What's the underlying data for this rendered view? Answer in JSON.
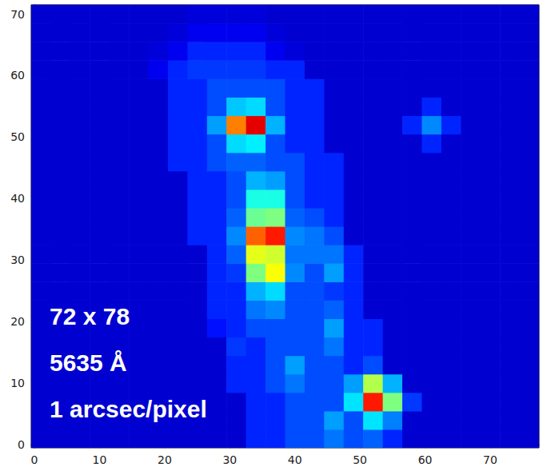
{
  "chart_data": {
    "type": "heatmap",
    "annotations": [
      "72 x 78",
      "5635 Å",
      "1 arcsec/pixel"
    ],
    "x": [
      1,
      4,
      7,
      10,
      13,
      16,
      19,
      22,
      25,
      28,
      31,
      34,
      37,
      40,
      43,
      46,
      49,
      52,
      55,
      58,
      61,
      64,
      67,
      70,
      73,
      76
    ],
    "y": [
      1,
      4,
      7,
      10,
      13,
      16,
      19,
      22,
      25,
      28,
      31,
      34,
      37,
      40,
      43,
      46,
      49,
      52,
      55,
      58,
      61,
      64,
      67,
      70
    ],
    "cells": [
      [
        8,
        8,
        8,
        8,
        8,
        8,
        8,
        8,
        8,
        8,
        8,
        16,
        16,
        20,
        20,
        24,
        20,
        22,
        16,
        8,
        8,
        8,
        8,
        8,
        8,
        8
      ],
      [
        8,
        8,
        8,
        8,
        8,
        8,
        8,
        8,
        8,
        8,
        8,
        16,
        16,
        20,
        20,
        28,
        20,
        35,
        25,
        8,
        8,
        8,
        8,
        8,
        8,
        8
      ],
      [
        8,
        8,
        8,
        8,
        8,
        8,
        8,
        8,
        8,
        8,
        8,
        16,
        16,
        20,
        20,
        20,
        35,
        85,
        50,
        18,
        8,
        8,
        8,
        8,
        8,
        8
      ],
      [
        8,
        8,
        8,
        8,
        8,
        8,
        8,
        8,
        8,
        8,
        16,
        16,
        20,
        24,
        20,
        20,
        28,
        55,
        30,
        8,
        8,
        8,
        8,
        8,
        8,
        8
      ],
      [
        8,
        8,
        8,
        8,
        8,
        8,
        8,
        8,
        8,
        8,
        16,
        16,
        20,
        28,
        20,
        20,
        16,
        20,
        8,
        8,
        8,
        8,
        8,
        8,
        8,
        8
      ],
      [
        8,
        8,
        8,
        8,
        8,
        8,
        8,
        8,
        8,
        8,
        18,
        16,
        20,
        20,
        20,
        24,
        16,
        16,
        8,
        8,
        8,
        8,
        8,
        8,
        8,
        8
      ],
      [
        8,
        8,
        8,
        8,
        8,
        8,
        8,
        8,
        8,
        14,
        16,
        20,
        20,
        20,
        20,
        28,
        16,
        16,
        8,
        8,
        8,
        8,
        8,
        8,
        8,
        8
      ],
      [
        8,
        8,
        8,
        8,
        8,
        8,
        8,
        8,
        8,
        16,
        16,
        24,
        26,
        20,
        20,
        22,
        16,
        8,
        8,
        8,
        8,
        8,
        8,
        8,
        8,
        8
      ],
      [
        8,
        8,
        8,
        8,
        8,
        8,
        8,
        8,
        8,
        16,
        16,
        30,
        34,
        20,
        20,
        18,
        16,
        8,
        8,
        8,
        8,
        8,
        8,
        8,
        8,
        8
      ],
      [
        8,
        8,
        8,
        8,
        8,
        8,
        8,
        8,
        8,
        16,
        18,
        50,
        62,
        26,
        20,
        28,
        16,
        8,
        8,
        8,
        8,
        8,
        8,
        8,
        8,
        8
      ],
      [
        8,
        8,
        8,
        8,
        8,
        8,
        8,
        8,
        8,
        16,
        22,
        60,
        58,
        24,
        24,
        24,
        16,
        8,
        8,
        8,
        8,
        8,
        8,
        8,
        8,
        8
      ],
      [
        8,
        8,
        8,
        8,
        8,
        8,
        8,
        8,
        16,
        16,
        26,
        78,
        85,
        26,
        24,
        20,
        8,
        8,
        8,
        8,
        8,
        8,
        8,
        8,
        8,
        8
      ],
      [
        8,
        8,
        8,
        8,
        8,
        8,
        8,
        8,
        16,
        16,
        22,
        48,
        50,
        22,
        20,
        16,
        8,
        8,
        8,
        8,
        8,
        8,
        8,
        8,
        8,
        8
      ],
      [
        8,
        8,
        8,
        8,
        8,
        8,
        8,
        8,
        16,
        16,
        20,
        40,
        40,
        20,
        16,
        16,
        8,
        8,
        8,
        8,
        8,
        8,
        8,
        8,
        8,
        8
      ],
      [
        8,
        8,
        8,
        8,
        8,
        8,
        8,
        8,
        16,
        16,
        20,
        30,
        28,
        20,
        16,
        16,
        8,
        8,
        8,
        8,
        8,
        8,
        8,
        8,
        8,
        8
      ],
      [
        8,
        8,
        8,
        8,
        8,
        8,
        8,
        16,
        16,
        20,
        22,
        22,
        20,
        20,
        16,
        16,
        8,
        8,
        8,
        8,
        8,
        8,
        8,
        8,
        8,
        8
      ],
      [
        8,
        8,
        8,
        8,
        8,
        8,
        8,
        16,
        16,
        20,
        34,
        36,
        20,
        16,
        16,
        8,
        8,
        8,
        8,
        8,
        16,
        8,
        8,
        8,
        8,
        8
      ],
      [
        8,
        8,
        8,
        8,
        8,
        8,
        8,
        16,
        16,
        28,
        75,
        90,
        30,
        16,
        16,
        8,
        8,
        8,
        8,
        16,
        26,
        16,
        8,
        8,
        8,
        8
      ],
      [
        8,
        8,
        8,
        8,
        8,
        8,
        8,
        16,
        16,
        20,
        32,
        34,
        20,
        16,
        16,
        8,
        8,
        8,
        8,
        8,
        16,
        8,
        8,
        8,
        8,
        8
      ],
      [
        8,
        8,
        8,
        8,
        8,
        8,
        8,
        16,
        16,
        20,
        20,
        20,
        20,
        16,
        16,
        8,
        8,
        8,
        8,
        8,
        8,
        8,
        8,
        8,
        8,
        8
      ],
      [
        8,
        8,
        8,
        8,
        8,
        8,
        11,
        16,
        18,
        18,
        18,
        18,
        16,
        16,
        8,
        8,
        8,
        8,
        8,
        8,
        8,
        8,
        8,
        8,
        8,
        8
      ],
      [
        8,
        8,
        8,
        8,
        8,
        8,
        9,
        11,
        16,
        16,
        16,
        16,
        11,
        9,
        8,
        8,
        8,
        8,
        8,
        8,
        8,
        8,
        8,
        8,
        8,
        8
      ],
      [
        8,
        8,
        8,
        8,
        8,
        8,
        8,
        9,
        11,
        11,
        11,
        11,
        9,
        8,
        8,
        8,
        8,
        8,
        8,
        8,
        8,
        8,
        8,
        8,
        8,
        8
      ],
      [
        8,
        8,
        8,
        8,
        8,
        8,
        8,
        8,
        9,
        9,
        9,
        9,
        8,
        8,
        8,
        8,
        8,
        8,
        8,
        8,
        8,
        8,
        8,
        8,
        8,
        8
      ]
    ],
    "zlim": [
      0,
      100
    ],
    "xlim": [
      -0.5,
      77.5
    ],
    "ylim": [
      -0.5,
      71.5
    ],
    "xticks": [
      0,
      10,
      20,
      30,
      40,
      50,
      60,
      70
    ],
    "yticks": [
      0,
      10,
      20,
      30,
      40,
      50,
      60,
      70
    ],
    "grid": false
  }
}
